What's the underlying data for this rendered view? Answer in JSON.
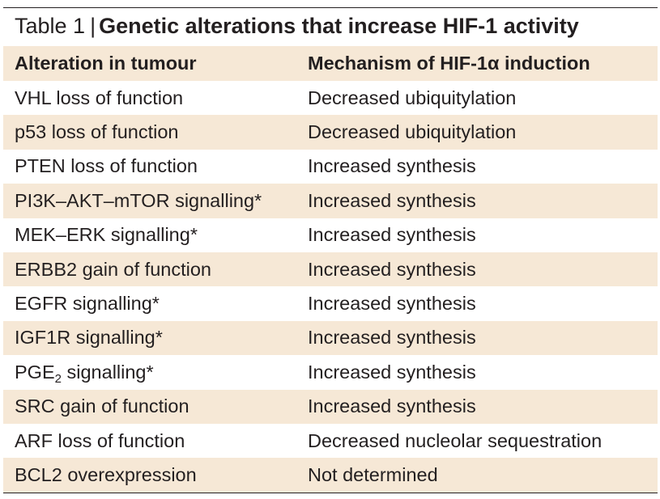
{
  "caption": {
    "label": "Table 1",
    "separator": "|",
    "title": "Genetic alterations that increase HIF-1 activity"
  },
  "table": {
    "headers": [
      "Alteration in tumour",
      "Mechanism of HIF-1α induction"
    ],
    "rows": [
      [
        "VHL loss of function",
        "Decreased ubiquitylation"
      ],
      [
        "p53 loss of function",
        "Decreased ubiquitylation"
      ],
      [
        "PTEN loss of function",
        "Increased synthesis"
      ],
      [
        "PI3K–AKT–mTOR signalling*",
        "Increased synthesis"
      ],
      [
        "MEK–ERK signalling*",
        "Increased synthesis"
      ],
      [
        "ERBB2 gain of function",
        "Increased synthesis"
      ],
      [
        "EGFR signalling*",
        "Increased synthesis"
      ],
      [
        "IGF1R signalling*",
        "Increased synthesis"
      ],
      [
        "PGE2 signalling*",
        "Increased synthesis"
      ],
      [
        "SRC gain of function",
        "Increased synthesis"
      ],
      [
        "ARF loss of function",
        "Decreased nucleolar sequestration"
      ],
      [
        "BCL2 overexpression",
        "Not determined"
      ]
    ],
    "pge": {
      "base": "PGE",
      "sub": "2",
      "rest": " signalling*"
    }
  },
  "colors": {
    "shade": "#f6e8d6",
    "text": "#231f20",
    "rule": "#231f20"
  }
}
